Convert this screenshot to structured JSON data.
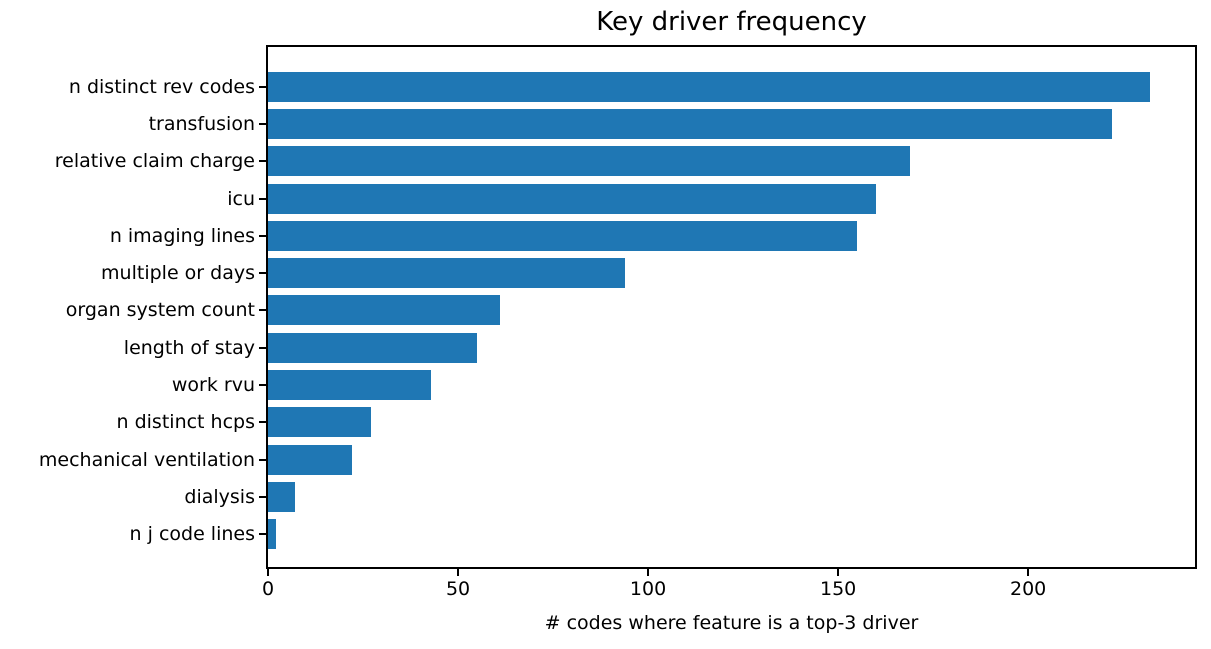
{
  "chart_data": {
    "type": "bar",
    "orientation": "horizontal",
    "title": "Key driver frequency",
    "xlabel": "# codes where feature is a top-3 driver",
    "ylabel": "",
    "categories": [
      "n distinct rev codes",
      "transfusion",
      "relative claim charge",
      "icu",
      "n imaging lines",
      "multiple or days",
      "organ system count",
      "length of stay",
      "work rvu",
      "n distinct hcps",
      "mechanical ventilation",
      "dialysis",
      "n j code lines"
    ],
    "values": [
      232,
      222,
      169,
      160,
      155,
      94,
      61,
      55,
      43,
      27,
      22,
      7,
      2
    ],
    "xticks": [
      0,
      50,
      100,
      150,
      200
    ],
    "xlim": [
      0,
      243.9
    ],
    "bar_color": "#1f77b4",
    "spine_color": "#000000",
    "grid": false,
    "legend": null
  }
}
